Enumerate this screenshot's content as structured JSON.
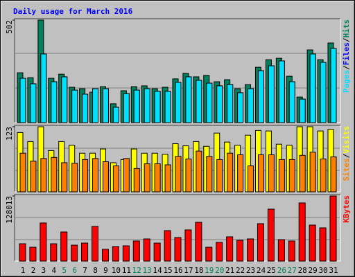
{
  "chart_data": [
    {
      "type": "bar",
      "title": "Daily usage for March 2016",
      "series": [
        {
          "name": "Hits",
          "color": "#00805c",
          "values": [
            244,
            220,
            502,
            217,
            237,
            173,
            166,
            149,
            176,
            92,
            156,
            176,
            180,
            166,
            173,
            214,
            241,
            224,
            231,
            200,
            210,
            166,
            186,
            271,
            308,
            315,
            227,
            125,
            356,
            308,
            390
          ]
        },
        {
          "name": "Files",
          "color": "#0000ff",
          "values": [
            217,
            190,
            336,
            200,
            224,
            159,
            139,
            166,
            166,
            75,
            142,
            159,
            166,
            153,
            153,
            197,
            224,
            207,
            193,
            180,
            186,
            146,
            166,
            254,
            278,
            302,
            200,
            115,
            336,
            295,
            363
          ]
        },
        {
          "name": "Pages",
          "color": "#00e0ff",
          "values": [
            217,
            190,
            336,
            200,
            224,
            159,
            139,
            166,
            166,
            75,
            142,
            159,
            166,
            153,
            153,
            197,
            224,
            207,
            193,
            180,
            186,
            146,
            166,
            254,
            278,
            302,
            200,
            115,
            336,
            295,
            363
          ]
        }
      ],
      "ylim": [
        0,
        502
      ],
      "yticks": [
        502
      ],
      "legend_separator": "/"
    },
    {
      "type": "bar",
      "series": [
        {
          "name": "Visits",
          "color": "#ffff00",
          "values": [
            112,
            95,
            123,
            78,
            95,
            88,
            73,
            73,
            81,
            55,
            61,
            81,
            73,
            73,
            71,
            91,
            87,
            95,
            86,
            111,
            94,
            88,
            107,
            116,
            115,
            90,
            88,
            123,
            123,
            115,
            118
          ]
        },
        {
          "name": "Sites",
          "color": "#ff8000",
          "values": [
            73,
            58,
            63,
            65,
            55,
            54,
            61,
            63,
            57,
            49,
            63,
            44,
            53,
            53,
            51,
            67,
            62,
            77,
            67,
            61,
            73,
            70,
            49,
            70,
            70,
            61,
            61,
            69,
            75,
            62,
            66
          ]
        }
      ],
      "ylim": [
        0,
        123
      ],
      "yticks": [
        123
      ],
      "legend_separator": "/"
    },
    {
      "type": "bar",
      "categories": [
        "1",
        "2",
        "3",
        "4",
        "5",
        "6",
        "7",
        "8",
        "9",
        "10",
        "11",
        "12",
        "13",
        "14",
        "15",
        "16",
        "17",
        "18",
        "19",
        "20",
        "21",
        "22",
        "23",
        "24",
        "25",
        "26",
        "27",
        "28",
        "29",
        "30",
        "31"
      ],
      "category_colors": [
        "#000000",
        "#000000",
        "#000000",
        "#000000",
        "#00805c",
        "#00805c",
        "#000000",
        "#000000",
        "#000000",
        "#000000",
        "#000000",
        "#00805c",
        "#00805c",
        "#000000",
        "#000000",
        "#000000",
        "#000000",
        "#000000",
        "#00805c",
        "#00805c",
        "#000000",
        "#000000",
        "#000000",
        "#000000",
        "#000000",
        "#00805c",
        "#00805c",
        "#000000",
        "#000000",
        "#000000",
        "#000000"
      ],
      "series": [
        {
          "name": "KBytes",
          "color": "#ff0000",
          "values": [
            34050,
            27240,
            74910,
            34050,
            57200,
            31330,
            35410,
            68100,
            23150,
            28600,
            29960,
            39500,
            43580,
            35410,
            59930,
            46310,
            61290,
            76270,
            27240,
            36770,
            47670,
            40860,
            43580,
            73550,
            102150,
            42220,
            39500,
            114410,
            70820,
            65380,
            128013
          ]
        }
      ],
      "ylim": [
        0,
        128013
      ],
      "yticks": [
        128013
      ]
    }
  ]
}
